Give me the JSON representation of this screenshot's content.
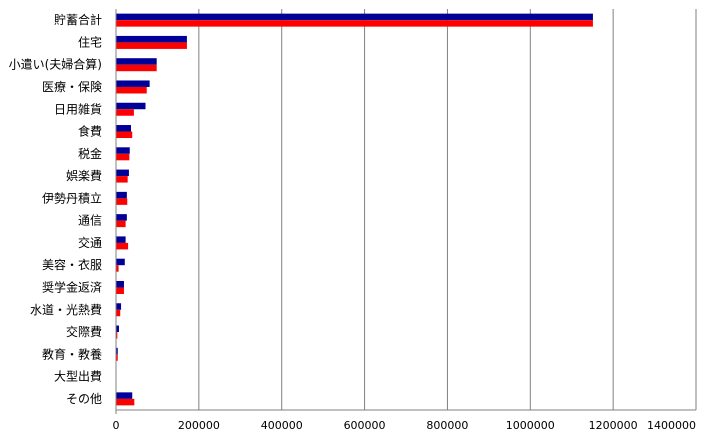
{
  "chart_data": {
    "type": "bar",
    "orientation": "horizontal",
    "title": "",
    "xlabel": "",
    "ylabel": "",
    "categories": [
      "貯蓄合計",
      "住宅",
      "小遣い(夫婦合算)",
      "医療・保険",
      "日用雑貨",
      "食費",
      "税金",
      "娯楽費",
      "伊勢丹積立",
      "通信",
      "交通",
      "美容・衣服",
      "奨学金返済",
      "水道・光熱費",
      "交際費",
      "教育・教養",
      "大型出費",
      "その他"
    ],
    "series": [
      {
        "color": "#000099",
        "values": [
          1150000,
          170000,
          97000,
          80000,
          70000,
          35000,
          32000,
          30000,
          25000,
          25000,
          22000,
          20000,
          18000,
          11000,
          6000,
          3000,
          0,
          38000
        ]
      },
      {
        "color": "#ff0000",
        "values": [
          1150000,
          170000,
          97000,
          73000,
          42000,
          38000,
          31000,
          27000,
          26000,
          22000,
          28000,
          5000,
          18000,
          9000,
          2000,
          3000,
          0,
          43000
        ]
      }
    ],
    "xlim": [
      0,
      1400000
    ],
    "xticks": [
      "0",
      "200000",
      "400000",
      "600000",
      "800000",
      "1000000",
      "1200000",
      "1400000"
    ],
    "grid": true,
    "legend": "none"
  }
}
